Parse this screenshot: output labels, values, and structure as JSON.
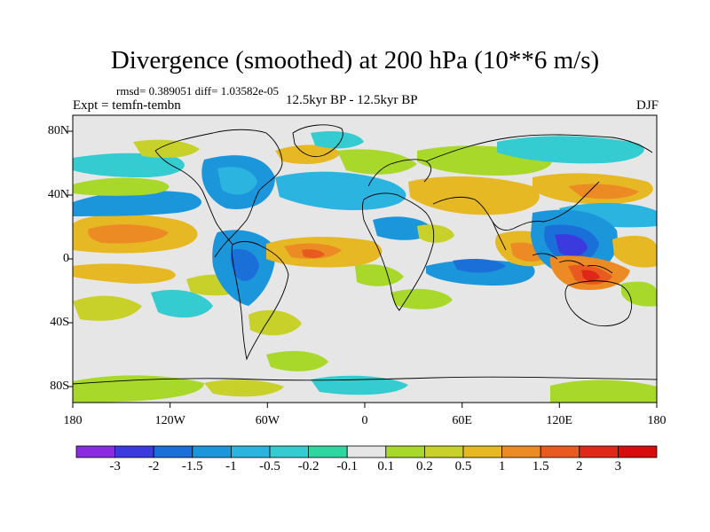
{
  "title": "Divergence (smoothed) at 200 hPa (10**6 m/s)",
  "stats": "rmsd= 0.389051 diff= 1.03582e-05",
  "experiment": "Expt = temfn-tembn",
  "period": "12.5kyr BP - 12.5kyr BP",
  "season": "DJF",
  "map": {
    "projection": "cylindrical equidistant",
    "lon_range": [
      -180,
      180
    ],
    "lat_range": [
      -90,
      90
    ],
    "lat_ticks": [
      {
        "label": "80N",
        "value": 80
      },
      {
        "label": "40N",
        "value": 40
      },
      {
        "label": "0",
        "value": 0
      },
      {
        "label": "40S",
        "value": -40
      },
      {
        "label": "80S",
        "value": -80
      }
    ],
    "lon_ticks": [
      {
        "label": "180",
        "value": -180
      },
      {
        "label": "120W",
        "value": -120
      },
      {
        "label": "60W",
        "value": -60
      },
      {
        "label": "0",
        "value": 0
      },
      {
        "label": "60E",
        "value": 60
      },
      {
        "label": "120E",
        "value": 120
      },
      {
        "label": "180",
        "value": 180
      }
    ],
    "background_color": "#e6e6e6"
  },
  "colorbar": {
    "labels": [
      "-3",
      "-2",
      "-1.5",
      "-1",
      "-0.5",
      "-0.2",
      "-0.1",
      "0.1",
      "0.2",
      "0.5",
      "1",
      "1.5",
      "2",
      "3"
    ],
    "colors": [
      "#8a2be2",
      "#3a3adf",
      "#1a6fd8",
      "#1c96da",
      "#2bb4e0",
      "#34ccd0",
      "#30d6a0",
      "#e6e6e6",
      "#a8d82a",
      "#c8d02a",
      "#e6b824",
      "#ec8a24",
      "#e85a20",
      "#e02818",
      "#d80c0c"
    ]
  }
}
